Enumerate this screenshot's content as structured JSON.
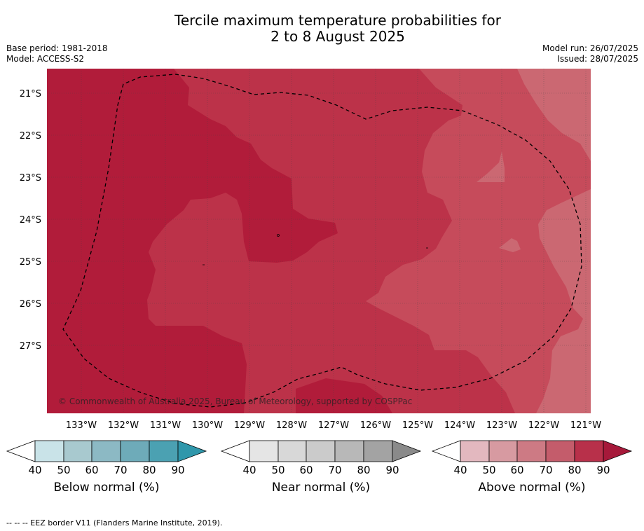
{
  "header": {
    "title_line1": "Tercile maximum temperature probabilities for",
    "title_line2": "2 to 8 August 2025",
    "base_period": "Base period: 1981-2018",
    "model": "Model: ACCESS-S2",
    "model_run": "Model run: 26/07/2025",
    "issued": "Issued: 28/07/2025"
  },
  "map": {
    "lat_labels": [
      "21°S",
      "22°S",
      "23°S",
      "24°S",
      "25°S",
      "26°S",
      "27°S"
    ],
    "lon_labels": [
      "133°W",
      "132°W",
      "131°W",
      "130°W",
      "129°W",
      "128°W",
      "127°W",
      "126°W",
      "125°W",
      "124°W",
      "123°W",
      "122°W",
      "121°W"
    ],
    "copyright": "© Commonwealth of Australia 2025, Bureau of Meteorology, supported by COSPPac",
    "colors": {
      "above_90": "#b11c3a",
      "above_80": "#bc3249",
      "above_70": "#c64b5b",
      "above_60": "#cb6872",
      "above_50": "#d5878f"
    }
  },
  "legends": [
    {
      "label": "Below normal (%)",
      "ticks": [
        "40",
        "50",
        "60",
        "70",
        "80",
        "90"
      ],
      "colors": [
        "#c9e3e8",
        "#a8c9cf",
        "#8cb9c4",
        "#6eabb9",
        "#4ba1b2",
        "#2f97ab"
      ]
    },
    {
      "label": "Near normal (%)",
      "ticks": [
        "40",
        "50",
        "60",
        "70",
        "80",
        "90"
      ],
      "colors": [
        "#e5e5e5",
        "#d8d8d8",
        "#cbcbcb",
        "#b8b8b8",
        "#a3a3a3",
        "#8a8a8a"
      ]
    },
    {
      "label": "Above normal (%)",
      "ticks": [
        "40",
        "50",
        "60",
        "70",
        "80",
        "90"
      ],
      "colors": [
        "#e3b8bf",
        "#d79aa1",
        "#cd7a84",
        "#c45c6b",
        "#b8304a",
        "#a6193a"
      ]
    }
  ],
  "footnote": "--  --  -- EEZ border V11 (Flanders Marine Institute, 2019)."
}
